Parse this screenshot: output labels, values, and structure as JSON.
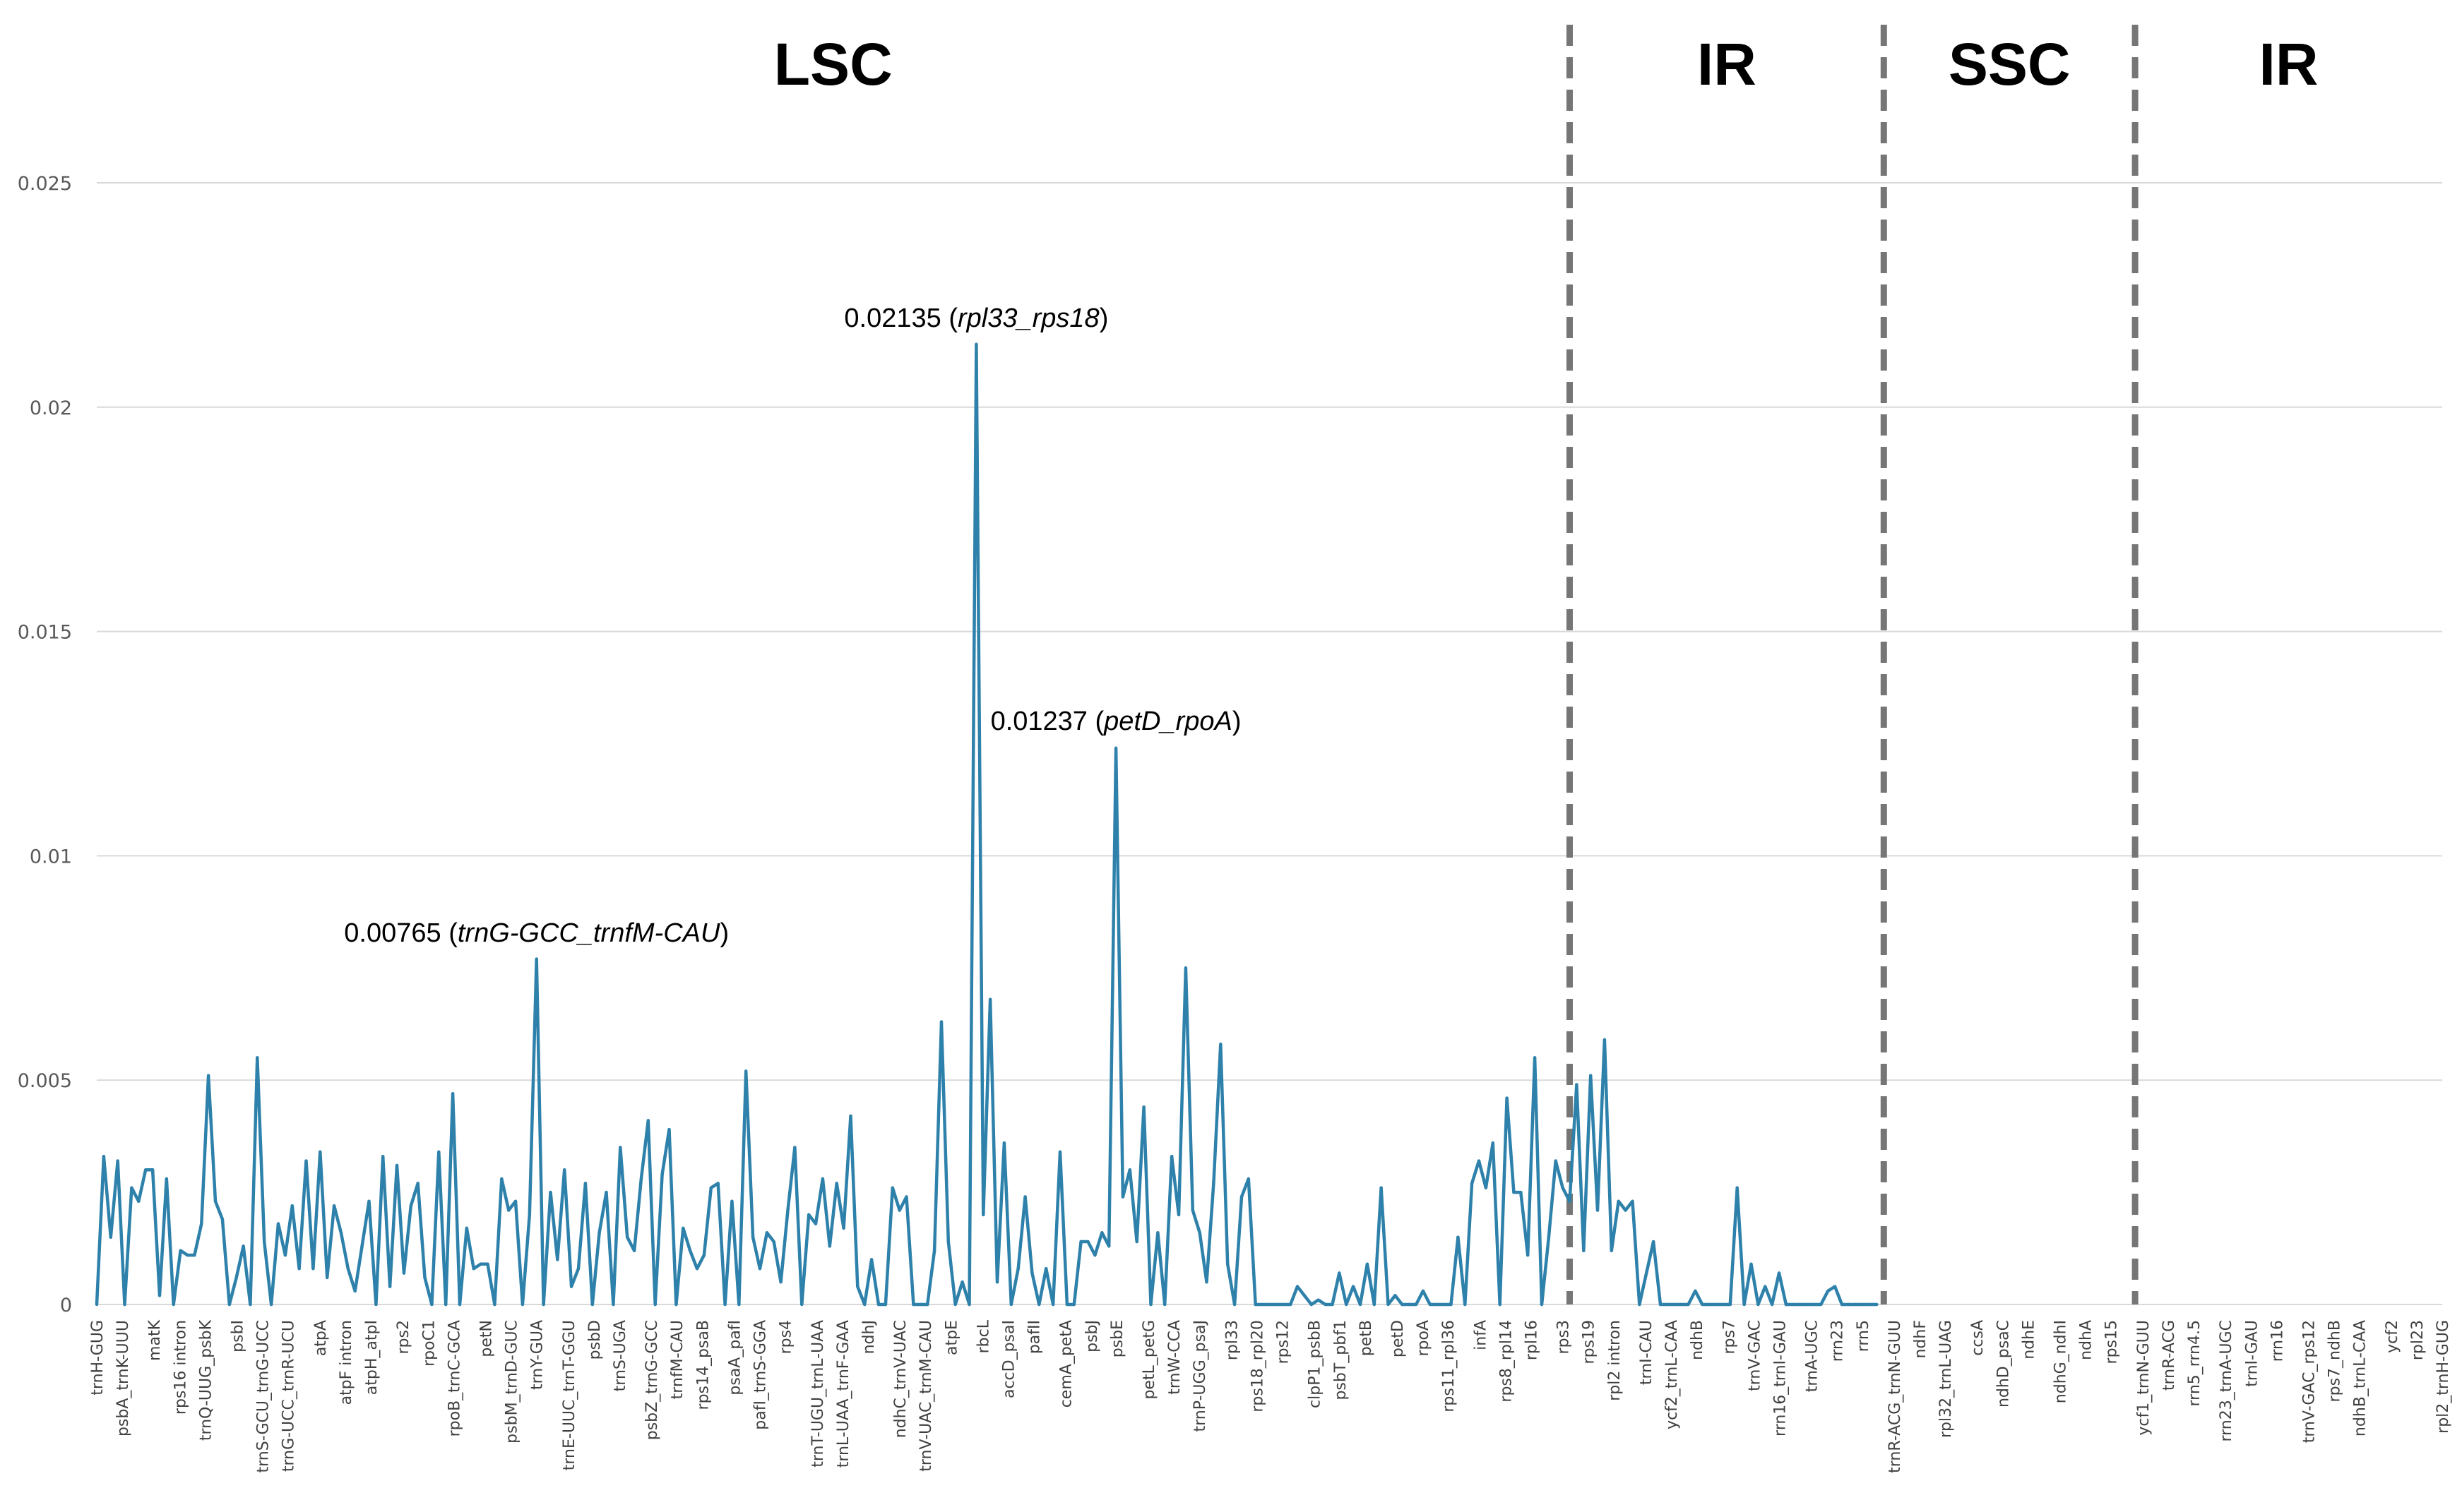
{
  "chart_data": {
    "type": "line",
    "title": "",
    "xlabel": "",
    "ylabel": "",
    "ylim": [
      0,
      0.025
    ],
    "yticks": [
      "0",
      "0.005",
      "0.01",
      "0.015",
      "0.02",
      "0.025"
    ],
    "grid": true,
    "colors": {
      "line": "#2E81AA",
      "grid": "#D9D9D9",
      "divider": "#767676",
      "text": "#000000"
    },
    "regions": [
      {
        "name": "LSC",
        "start": 0,
        "end": 211
      },
      {
        "name": "IR",
        "start": 211,
        "end": 256
      },
      {
        "name": "SSC",
        "start": 256,
        "end": 292
      },
      {
        "name": "IR",
        "start": 292,
        "end": 336
      }
    ],
    "dividers": [
      211,
      256,
      292
    ],
    "x_labels": [
      "trnH-GUG",
      "psbA_trnK-UUU",
      "matK",
      "rps16 intron",
      "trnQ-UUG_psbK",
      "psbI",
      "trnS-GCU_trnG-UCC",
      "trnG-UCC_trnR-UCU",
      "atpA",
      "atpF intron",
      "atpH_atpI",
      "rps2",
      "rpoC1",
      "rpoB_trnC-GCA",
      "petN",
      "psbM_trnD-GUC",
      "trnY-GUA",
      "trnE-UUC_trnT-GGU",
      "psbD",
      "trnS-UGA",
      "psbZ_trnG-GCC",
      "trnfM-CAU",
      "rps14_psaB",
      "psaA_pafI",
      "pafI_trnS-GGA",
      "rps4",
      "trnT-UGU_trnL-UAA",
      "trnL-UAA_trnF-GAA",
      "ndhJ",
      "ndhC_trnV-UAC",
      "trnV-UAC_trnM-CAU",
      "atpE",
      "rbcL",
      "accD_psaI",
      "pafII",
      "cemA_petA",
      "psbJ",
      "psbE",
      "petL_petG",
      "trnW-CCA",
      "trnP-UGG_psaJ",
      "rpl33",
      "rps18_rpl20",
      "rps12",
      "clpP1_psbB",
      "psbT_pbf1",
      "petB",
      "petD",
      "rpoA",
      "rps11_rpl36",
      "infA",
      "rps8_rpl14",
      "rpl16",
      "rps3",
      "rps19",
      "rpl2 intron",
      "trnI-CAU",
      "ycf2_trnL-CAA",
      "ndhB",
      "rps7",
      "trnV-GAC",
      "rrn16_trnI-GAU",
      "trnA-UGC",
      "rrn23",
      "rrn5",
      "trnR-ACG_trnN-GUU",
      "ndhF",
      "rpl32_trnL-UAG",
      "ccsA",
      "ndhD_psaC",
      "ndhE",
      "ndhG_ndhI",
      "ndhA",
      "rps15",
      "ycf1_trnN-GUU",
      "trnR-ACG",
      "rrn5_rrn4.5",
      "rrn23_trnA-UGC",
      "trnI-GAU",
      "rrn16",
      "trnV-GAC_rps12",
      "rps7_ndhB",
      "ndhB_trnL-CAA",
      "ycf2",
      "rpl23",
      "rpl2_trnH-GUG"
    ],
    "x_label_positions": [
      0,
      4,
      9,
      13,
      17,
      22,
      26,
      30,
      35,
      39,
      43,
      48,
      52,
      56,
      61,
      65,
      69,
      74,
      78,
      82,
      87,
      91,
      95,
      100,
      104,
      108,
      113,
      117,
      121,
      126,
      130,
      134,
      139,
      143,
      147,
      152,
      156,
      160,
      165,
      169,
      173,
      178,
      182,
      186,
      191,
      195,
      199,
      204,
      208,
      212,
      217,
      221,
      225,
      230,
      234,
      238,
      243,
      247,
      251,
      256,
      260,
      264,
      269,
      273,
      277,
      282,
      286,
      290,
      295,
      299,
      303,
      308,
      312,
      316,
      321,
      325,
      329,
      334,
      338,
      342,
      347,
      351,
      355,
      360,
      364,
      368
    ],
    "x_label_scale_max": 368,
    "values": [
      0.0,
      0.0033,
      0.0015,
      0.0032,
      0.0,
      0.0026,
      0.0023,
      0.003,
      0.003,
      0.0002,
      0.0028,
      0.0,
      0.0012,
      0.0011,
      0.0011,
      0.0018,
      0.0051,
      0.0023,
      0.0019,
      0.0,
      0.0006,
      0.0013,
      0.0,
      0.0055,
      0.0014,
      0.0,
      0.0018,
      0.0011,
      0.0022,
      0.0008,
      0.0032,
      0.0008,
      0.0034,
      0.0006,
      0.0022,
      0.0016,
      0.0008,
      0.0003,
      0.0013,
      0.0023,
      0.0,
      0.0033,
      0.0004,
      0.0031,
      0.0007,
      0.0022,
      0.0027,
      0.0006,
      0.0,
      0.0034,
      0.0,
      0.0047,
      0.0,
      0.0017,
      0.0008,
      0.0009,
      0.0009,
      0.0,
      0.0028,
      0.0021,
      0.0023,
      0.0,
      0.002,
      0.0077,
      0.0,
      0.0025,
      0.001,
      0.003,
      0.0004,
      0.0008,
      0.0027,
      0.0,
      0.0016,
      0.0025,
      0.0,
      0.0035,
      0.0015,
      0.0012,
      0.0028,
      0.0041,
      0.0,
      0.0029,
      0.0039,
      0.0,
      0.0017,
      0.0012,
      0.0008,
      0.0011,
      0.0026,
      0.0027,
      0.0,
      0.0023,
      0.0,
      0.0052,
      0.0015,
      0.0008,
      0.0016,
      0.0014,
      0.0005,
      0.0021,
      0.0035,
      0.0,
      0.002,
      0.0018,
      0.0028,
      0.0013,
      0.0027,
      0.0017,
      0.0042,
      0.0004,
      0.0,
      0.001,
      0.0,
      0.0,
      0.0026,
      0.0021,
      0.0024,
      0.0,
      0.0,
      0.0,
      0.0012,
      0.0063,
      0.0014,
      0.0,
      0.0005,
      0.0,
      0.0214,
      0.002,
      0.0068,
      0.0005,
      0.0036,
      0.0,
      0.0008,
      0.0024,
      0.0007,
      0.0,
      0.0008,
      0.0,
      0.0034,
      0.0,
      0.0,
      0.0014,
      0.0014,
      0.0011,
      0.0016,
      0.0013,
      0.0124,
      0.0024,
      0.003,
      0.0014,
      0.0044,
      0.0,
      0.0016,
      0.0,
      0.0033,
      0.002,
      0.0075,
      0.0021,
      0.0016,
      0.0005,
      0.0027,
      0.0058,
      0.0009,
      0.0,
      0.0024,
      0.0028,
      0.0,
      0.0,
      0.0,
      0.0,
      0.0,
      0.0,
      0.0004,
      0.0002,
      0.0,
      0.0001,
      0.0,
      0.0,
      0.0007,
      0.0,
      0.0004,
      0.0,
      0.0009,
      0.0,
      0.0026,
      0.0,
      0.0002,
      0.0,
      0.0,
      0.0,
      0.0003,
      0.0,
      0.0,
      0.0,
      0.0,
      0.0015,
      0.0,
      0.0027,
      0.0032,
      0.0026,
      0.0036,
      0.0,
      0.0046,
      0.0025,
      0.0025,
      0.0011,
      0.0055,
      0.0,
      0.0015,
      0.0032,
      0.0026,
      0.0023,
      0.0049,
      0.0012,
      0.0051,
      0.0021,
      0.0059,
      0.0012,
      0.0023,
      0.0021,
      0.0023,
      0.0,
      0.0007,
      0.0014,
      0.0,
      0.0,
      0.0,
      0.0,
      0.0,
      0.0003,
      0.0,
      0.0,
      0.0,
      0.0,
      0.0,
      0.0026,
      0.0,
      0.0009,
      0.0,
      0.0004,
      0.0,
      0.0007,
      0.0,
      0.0,
      0.0,
      0.0,
      0.0,
      0.0,
      0.0003,
      0.0004,
      0.0,
      0.0,
      0.0,
      0.0,
      0.0,
      0.0
    ],
    "x_index_max": 336,
    "annotations": [
      {
        "index": 63,
        "value": 0.00765,
        "label": "0.00765",
        "gene": "trnG-GCC_trnfM-CAU"
      },
      {
        "index": 126,
        "value": 0.02135,
        "label": "0.02135",
        "gene": "rpl33_rps18"
      },
      {
        "index": 146,
        "value": 0.01237,
        "label": "0.01237",
        "gene": "petD_rpoA"
      }
    ]
  }
}
